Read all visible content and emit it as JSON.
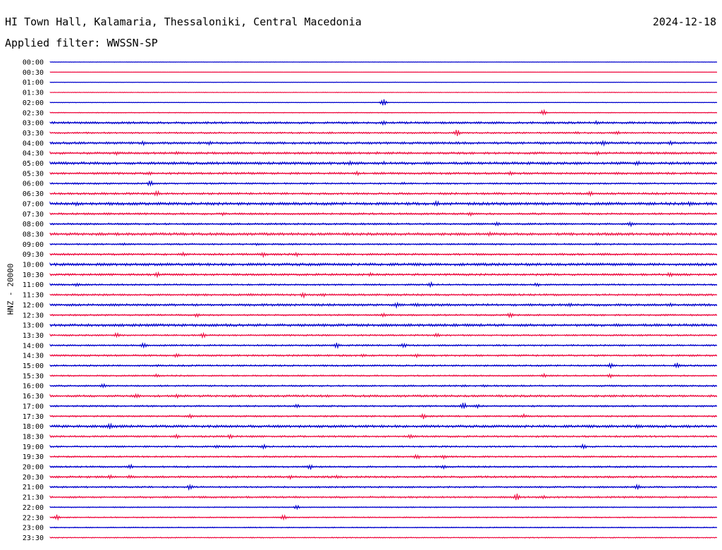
{
  "header": {
    "station": "HI Town Hall, Kalamaria, Thessaloniki, Central Macedonia",
    "date": "2024-12-18",
    "filter": "Applied filter: WWSSN-SP"
  },
  "chart_data": {
    "type": "line",
    "title": "HI Town Hall, Kalamaria, Thessaloniki, Central Macedonia",
    "ylabel": "HNZ - 20000",
    "colors": [
      "#0000cc",
      "#ee1144"
    ],
    "trace_labels": [
      "00:00",
      "00:30",
      "01:00",
      "01:30",
      "02:00",
      "02:30",
      "03:00",
      "03:30",
      "04:00",
      "04:30",
      "05:00",
      "05:30",
      "06:00",
      "06:30",
      "07:00",
      "07:30",
      "08:00",
      "08:30",
      "09:00",
      "09:30",
      "10:00",
      "10:30",
      "11:00",
      "11:30",
      "12:00",
      "12:30",
      "13:00",
      "13:30",
      "14:00",
      "14:30",
      "15:00",
      "15:30",
      "16:00",
      "16:30",
      "17:00",
      "17:30",
      "18:00",
      "18:30",
      "19:00",
      "19:30",
      "20:00",
      "20:30",
      "21:00",
      "21:30",
      "22:00",
      "22:30",
      "23:00",
      "23:30"
    ],
    "noise_level": [
      0.2,
      0.1,
      0.3,
      0.4,
      0.3,
      0.5,
      1.3,
      1.0,
      1.4,
      1.3,
      1.6,
      1.3,
      1.0,
      1.3,
      1.7,
      1.2,
      1.1,
      1.6,
      1.0,
      1.2,
      1.6,
      1.3,
      1.0,
      1.2,
      1.4,
      1.0,
      1.6,
      1.0,
      1.0,
      1.1,
      1.0,
      0.9,
      1.0,
      1.3,
      1.0,
      1.0,
      1.5,
      1.1,
      1.0,
      1.0,
      1.0,
      1.2,
      1.0,
      1.1,
      0.6,
      0.7,
      0.6,
      0.6
    ],
    "bursts": [
      [],
      [],
      [],
      [],
      [
        [
          0.5,
          6
        ]
      ],
      [
        [
          0.74,
          4
        ]
      ],
      [
        [
          0.5,
          3
        ],
        [
          0.82,
          3
        ]
      ],
      [
        [
          0.42,
          2
        ],
        [
          0.61,
          5
        ],
        [
          0.79,
          2
        ],
        [
          0.85,
          3
        ]
      ],
      [
        [
          0.14,
          3
        ],
        [
          0.24,
          3
        ],
        [
          0.83,
          4
        ],
        [
          0.93,
          3
        ]
      ],
      [
        [
          0.1,
          3
        ],
        [
          0.19,
          3
        ],
        [
          0.49,
          2
        ],
        [
          0.82,
          3
        ]
      ],
      [
        [
          0.07,
          2
        ],
        [
          0.39,
          3
        ],
        [
          0.45,
          4
        ],
        [
          0.5,
          3
        ],
        [
          0.88,
          4
        ]
      ],
      [
        [
          0.15,
          3
        ],
        [
          0.46,
          3
        ],
        [
          0.69,
          3
        ]
      ],
      [
        [
          0.04,
          2
        ],
        [
          0.15,
          4
        ],
        [
          0.53,
          2
        ]
      ],
      [
        [
          0.03,
          2
        ],
        [
          0.16,
          5
        ],
        [
          0.81,
          4
        ]
      ],
      [
        [
          0.04,
          3
        ],
        [
          0.58,
          4
        ],
        [
          0.96,
          4
        ]
      ],
      [
        [
          0.26,
          3
        ],
        [
          0.63,
          3
        ]
      ],
      [
        [
          0.67,
          3
        ],
        [
          0.87,
          4
        ]
      ],
      [
        [
          0.2,
          2
        ],
        [
          0.66,
          3
        ]
      ],
      [
        [
          0.11,
          2
        ],
        [
          0.31,
          2
        ],
        [
          0.82,
          2
        ]
      ],
      [
        [
          0.2,
          3
        ],
        [
          0.32,
          4
        ],
        [
          0.37,
          3
        ],
        [
          0.83,
          2
        ]
      ],
      [
        [
          0.08,
          2
        ],
        [
          0.58,
          2
        ],
        [
          0.66,
          2
        ]
      ],
      [
        [
          0.16,
          4
        ],
        [
          0.48,
          3
        ],
        [
          0.93,
          4
        ]
      ],
      [
        [
          0.04,
          3
        ],
        [
          0.57,
          4
        ],
        [
          0.73,
          3
        ]
      ],
      [
        [
          0.3,
          2
        ],
        [
          0.38,
          4
        ],
        [
          0.41,
          3
        ]
      ],
      [
        [
          0.52,
          4
        ],
        [
          0.55,
          3
        ],
        [
          0.78,
          3
        ],
        [
          0.93,
          3
        ]
      ],
      [
        [
          0.22,
          3
        ],
        [
          0.5,
          3
        ],
        [
          0.69,
          4
        ]
      ],
      [
        [
          0.27,
          2
        ],
        [
          0.61,
          2
        ]
      ],
      [
        [
          0.1,
          4
        ],
        [
          0.23,
          4
        ],
        [
          0.58,
          3
        ]
      ],
      [
        [
          0.14,
          4
        ],
        [
          0.43,
          4
        ],
        [
          0.53,
          4
        ]
      ],
      [
        [
          0.19,
          3
        ],
        [
          0.47,
          3
        ],
        [
          0.55,
          3
        ]
      ],
      [
        [
          0.16,
          2
        ],
        [
          0.84,
          4
        ],
        [
          0.94,
          4
        ]
      ],
      [
        [
          0.16,
          3
        ],
        [
          0.74,
          3
        ],
        [
          0.84,
          3
        ]
      ],
      [
        [
          0.08,
          3
        ],
        [
          0.62,
          2
        ],
        [
          0.65,
          2
        ]
      ],
      [
        [
          0.13,
          4
        ],
        [
          0.19,
          3
        ],
        [
          0.86,
          2
        ]
      ],
      [
        [
          0.37,
          3
        ],
        [
          0.62,
          5
        ],
        [
          0.64,
          3
        ]
      ],
      [
        [
          0.21,
          3
        ],
        [
          0.56,
          4
        ],
        [
          0.71,
          3
        ]
      ],
      [
        [
          0.09,
          4
        ],
        [
          0.88,
          4
        ]
      ],
      [
        [
          0.19,
          4
        ],
        [
          0.27,
          3
        ],
        [
          0.54,
          3
        ]
      ],
      [
        [
          0.25,
          3
        ],
        [
          0.32,
          3
        ],
        [
          0.8,
          4
        ]
      ],
      [
        [
          0.55,
          4
        ],
        [
          0.59,
          3
        ]
      ],
      [
        [
          0.12,
          4
        ],
        [
          0.39,
          4
        ],
        [
          0.59,
          3
        ]
      ],
      [
        [
          0.09,
          3
        ],
        [
          0.12,
          3
        ],
        [
          0.36,
          3
        ],
        [
          0.43,
          3
        ]
      ],
      [
        [
          0.21,
          5
        ],
        [
          0.88,
          4
        ]
      ],
      [
        [
          0.23,
          2
        ],
        [
          0.7,
          5
        ],
        [
          0.74,
          3
        ]
      ],
      [
        [
          0.37,
          3
        ]
      ],
      [
        [
          0.01,
          4
        ],
        [
          0.35,
          4
        ]
      ],
      [],
      []
    ]
  }
}
